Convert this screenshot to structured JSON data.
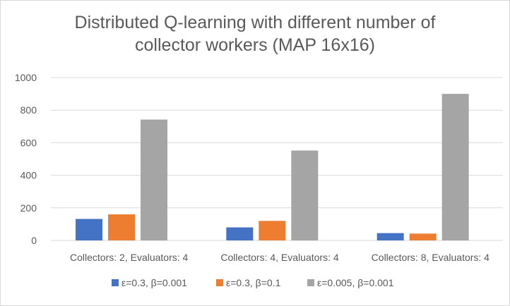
{
  "chart_data": {
    "type": "bar",
    "title_lines": [
      "Distributed Q-learning with different number of",
      "collector workers (MAP 16x16)"
    ],
    "title": "Distributed Q-learning with different number of collector workers (MAP 16x16)",
    "categories": [
      "Collectors: 2, Evaluators: 4",
      "Collectors: 4, Evaluators: 4",
      "Collectors: 8, Evaluators: 4"
    ],
    "series": [
      {
        "name": "ε=0.3, β=0.001",
        "color": "#4472c4",
        "values": [
          132,
          80,
          45
        ]
      },
      {
        "name": "ε=0.3, β=0.1",
        "color": "#ed7d31",
        "values": [
          160,
          120,
          42
        ]
      },
      {
        "name": "ε=0.005, β=0.001",
        "color": "#a5a5a5",
        "values": [
          742,
          552,
          900
        ]
      }
    ],
    "ylim": [
      0,
      1000
    ],
    "yticks": [
      0,
      200,
      400,
      600,
      800,
      1000
    ],
    "xlabel": "",
    "ylabel": "",
    "grid": true,
    "legend_position": "bottom"
  }
}
